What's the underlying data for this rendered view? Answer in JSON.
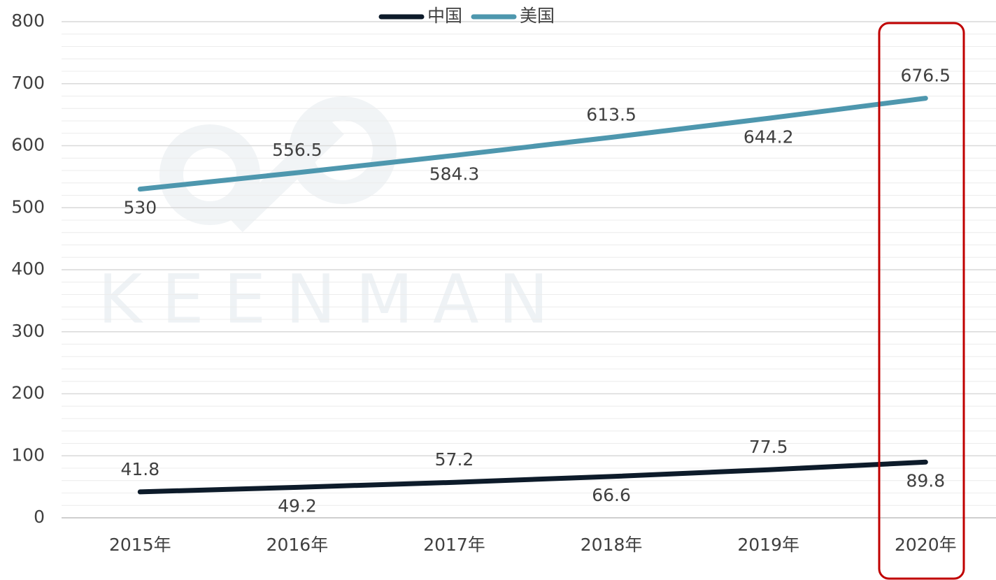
{
  "chart_data": {
    "type": "line",
    "watermark": "KEENMAN",
    "categories": [
      "2015年",
      "2016年",
      "2017年",
      "2018年",
      "2019年",
      "2020年"
    ],
    "series": [
      {
        "name": "中国",
        "color": "#0d1b2a",
        "values": [
          41.8,
          49.2,
          57.2,
          66.6,
          77.5,
          89.8
        ]
      },
      {
        "name": "美国",
        "color": "#4e97ae",
        "values": [
          530,
          556.5,
          584.3,
          613.5,
          644.2,
          676.5
        ]
      }
    ],
    "ylim": [
      0,
      800
    ],
    "yticks": [
      0,
      100,
      200,
      300,
      400,
      500,
      600,
      700,
      800
    ],
    "grid": true,
    "legend": "top"
  }
}
